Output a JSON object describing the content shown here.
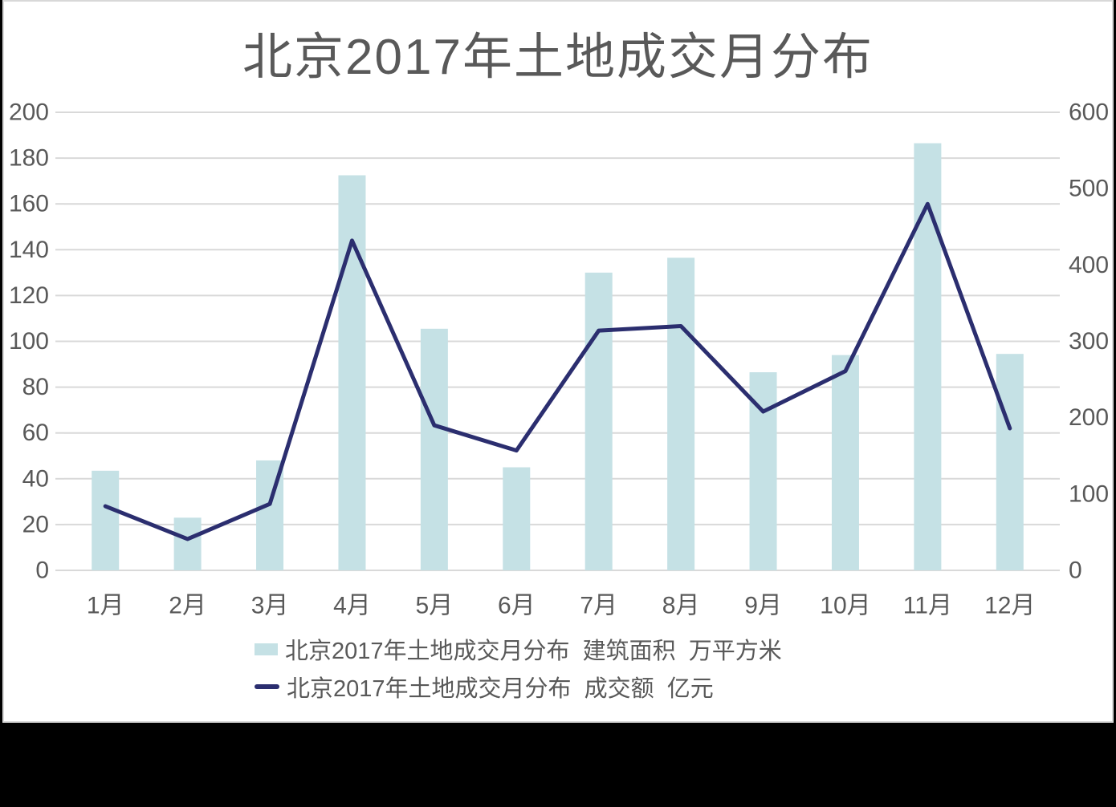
{
  "title": "北京2017年土地成交月分布",
  "colors": {
    "bar": "#c5e1e5",
    "line": "#2b2e6f",
    "text": "#595959",
    "grid": "#d9d9d9",
    "plot_background": "#ffffff",
    "outer_background": "#000000",
    "card_border": "#d8d8d8"
  },
  "legend": {
    "items": [
      {
        "label": "北京2017年土地成交月分布  建筑面积  万平方米",
        "marker": "bar-swatch-icon"
      },
      {
        "label": "北京2017年土地成交月分布  成交额  亿元",
        "marker": "line-swatch-icon"
      }
    ]
  },
  "chart_data": {
    "type": "combo-bar-line",
    "title": "北京2017年土地成交月分布",
    "categories": [
      "1月",
      "2月",
      "3月",
      "4月",
      "5月",
      "6月",
      "7月",
      "8月",
      "9月",
      "10月",
      "11月",
      "12月"
    ],
    "series": [
      {
        "name": "北京2017年土地成交月分布 建筑面积 万平方米",
        "type": "bar",
        "axis": "left",
        "values": [
          43.5,
          23,
          48,
          172.5,
          105.5,
          45,
          130,
          136.5,
          86.5,
          94,
          186.5,
          94.5
        ]
      },
      {
        "name": "北京2017年土地成交月分布 成交额 亿元",
        "type": "line",
        "axis": "right",
        "values": [
          84,
          41,
          87,
          432,
          190,
          157,
          314,
          320,
          208,
          261,
          480,
          186
        ]
      }
    ],
    "left_axis": {
      "min": 0,
      "max": 200,
      "step": 20
    },
    "right_axis": {
      "min": 0,
      "max": 600,
      "step": 100
    },
    "grid": true,
    "legend_position": "bottom"
  }
}
